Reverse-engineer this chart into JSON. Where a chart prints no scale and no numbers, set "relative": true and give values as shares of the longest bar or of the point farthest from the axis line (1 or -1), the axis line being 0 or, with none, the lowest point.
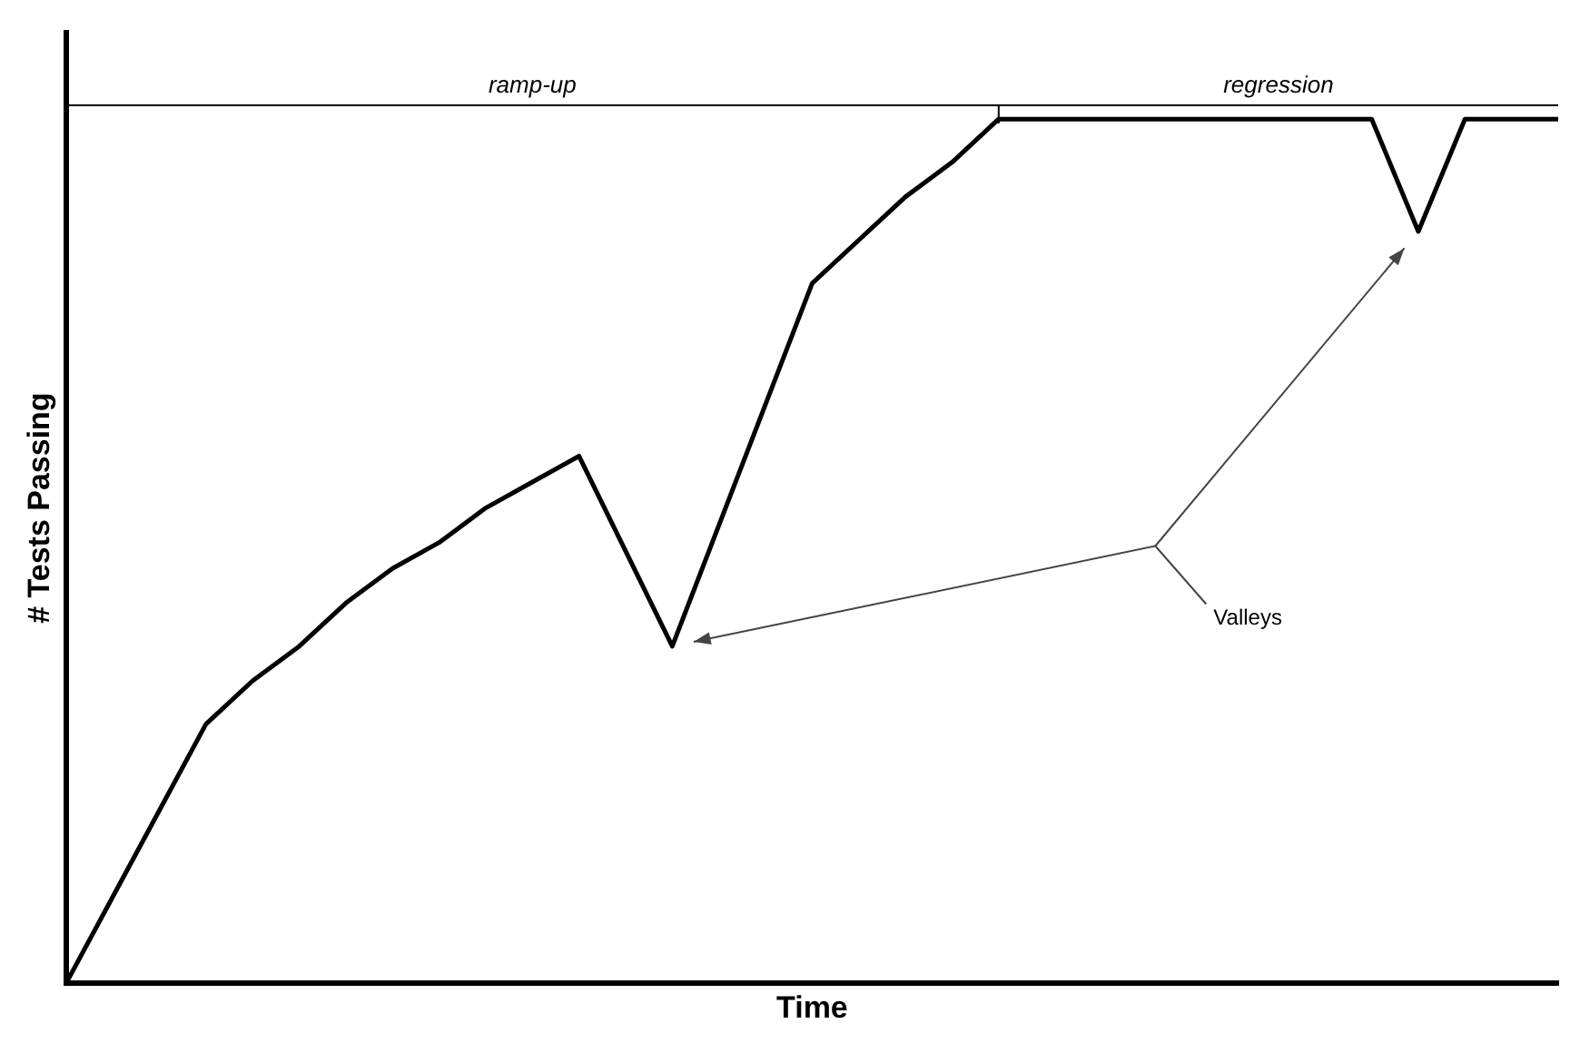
{
  "chart_data": {
    "type": "line",
    "relative": true,
    "xlabel": "Time",
    "ylabel": "# Tests Passing",
    "categories": [
      null,
      null,
      null,
      null,
      null,
      null,
      null,
      null,
      null,
      null,
      null,
      null,
      null,
      null,
      null,
      null,
      null,
      null,
      null,
      null,
      null,
      null,
      null,
      null,
      null,
      null,
      null,
      null,
      null,
      null,
      null,
      null,
      null
    ],
    "series": [
      {
        "color": "#000000",
        "values": [
          0,
          0.1,
          0.2,
          0.3,
          0.35,
          0.39,
          0.44,
          0.48,
          0.51,
          0.55,
          0.58,
          0.61,
          0.5,
          0.39,
          0.53,
          0.67,
          0.81,
          0.86,
          0.91,
          0.95,
          1,
          1,
          1,
          1,
          1,
          1,
          1,
          1,
          1,
          0.87,
          1,
          1,
          1
        ]
      }
    ],
    "annotations": [
      "ramp-up",
      "regression",
      "Valleys"
    ],
    "grid": false,
    "legend": false,
    "marker": "none",
    "line_style": "solid"
  }
}
